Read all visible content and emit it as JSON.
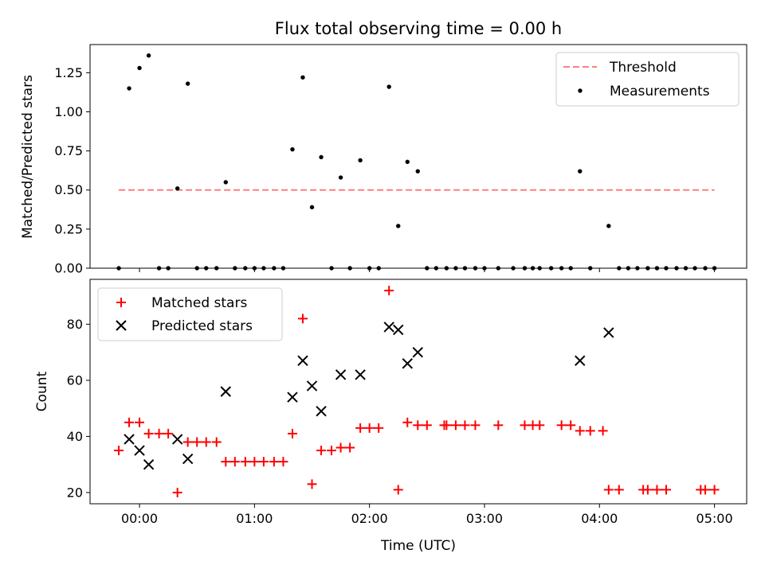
{
  "chart_data": [
    {
      "type": "scatter",
      "title": "Flux total observing time = 0.00 h",
      "xlabel": "",
      "ylabel": "Matched/Predicted stars",
      "xlim_hours": [
        -0.43,
        5.28
      ],
      "ylim": [
        0,
        1.43
      ],
      "yticks": [
        0,
        0.25,
        0.5,
        0.75,
        1.0,
        1.25
      ],
      "ytick_labels": [
        "0.00",
        "0.25",
        "0.50",
        "0.75",
        "1.00",
        "1.25"
      ],
      "legend_position": "upper-right",
      "threshold": {
        "name": "Threshold",
        "value": 0.5,
        "x_range_hours": [
          -0.18,
          5.0
        ],
        "color": "#ff7f7f"
      },
      "series": [
        {
          "name": "Measurements",
          "color": "#000000",
          "marker": "dot",
          "x_hours": [
            -0.18,
            -0.09,
            0.0,
            0.08,
            0.17,
            0.25,
            0.33,
            0.42,
            0.5,
            0.58,
            0.67,
            0.75,
            0.83,
            0.92,
            1.0,
            1.08,
            1.17,
            1.25,
            1.33,
            1.42,
            1.5,
            1.58,
            1.67,
            1.75,
            1.83,
            1.92,
            2.0,
            2.08,
            2.17,
            2.25,
            2.33,
            2.42,
            2.5,
            2.58,
            2.67,
            2.75,
            2.83,
            2.92,
            3.0,
            3.12,
            3.25,
            3.35,
            3.42,
            3.48,
            3.58,
            3.67,
            3.75,
            3.83,
            3.92,
            4.08,
            4.17,
            4.25,
            4.33,
            4.42,
            4.5,
            4.58,
            4.67,
            4.75,
            4.83,
            4.92,
            5.0
          ],
          "y": [
            0.0,
            1.15,
            1.28,
            1.36,
            0.0,
            0.0,
            0.51,
            1.18,
            0.0,
            0.0,
            0.0,
            0.55,
            0.0,
            0.0,
            0.0,
            0.0,
            0.0,
            0.0,
            0.76,
            1.22,
            0.39,
            0.71,
            0.0,
            0.58,
            0.0,
            0.69,
            0.0,
            0.0,
            1.16,
            0.27,
            0.68,
            0.62,
            0.0,
            0.0,
            0.0,
            0.0,
            0.0,
            0.0,
            0.0,
            0.0,
            0.0,
            0.0,
            0.0,
            0.0,
            0.0,
            0.0,
            0.0,
            0.62,
            0.0,
            0.27,
            0.0,
            0.0,
            0.0,
            0.0,
            0.0,
            0.0,
            0.0,
            0.0,
            0.0,
            0.0,
            0.0
          ]
        }
      ]
    },
    {
      "type": "scatter",
      "title": "",
      "xlabel": "Time (UTC)",
      "ylabel": "Count",
      "xlim_hours": [
        -0.43,
        5.28
      ],
      "ylim": [
        16,
        96
      ],
      "yticks": [
        20,
        40,
        60,
        80
      ],
      "ytick_labels": [
        "20",
        "40",
        "60",
        "80"
      ],
      "xticks_hours": [
        0,
        1,
        2,
        3,
        4,
        5
      ],
      "xtick_labels": [
        "00:00",
        "01:00",
        "02:00",
        "03:00",
        "04:00",
        "05:00"
      ],
      "legend_position": "upper-left",
      "series": [
        {
          "name": "Matched stars",
          "color": "#ff0000",
          "marker": "plus",
          "x_hours": [
            -0.18,
            -0.09,
            0.0,
            0.08,
            0.17,
            0.25,
            0.33,
            0.42,
            0.5,
            0.58,
            0.67,
            0.75,
            0.83,
            0.92,
            1.0,
            1.08,
            1.17,
            1.25,
            1.33,
            1.42,
            1.5,
            1.58,
            1.67,
            1.75,
            1.83,
            1.92,
            2.0,
            2.08,
            2.17,
            2.25,
            2.33,
            2.42,
            2.5,
            2.65,
            2.67,
            2.75,
            2.83,
            2.92,
            3.12,
            3.35,
            3.42,
            3.48,
            3.67,
            3.75,
            3.83,
            3.92,
            4.03,
            4.08,
            4.17,
            4.38,
            4.42,
            4.5,
            4.58,
            4.88,
            4.92,
            5.0
          ],
          "y": [
            35,
            45,
            45,
            41,
            41,
            41,
            20,
            38,
            38,
            38,
            38,
            31,
            31,
            31,
            31,
            31,
            31,
            31,
            41,
            82,
            23,
            35,
            35,
            36,
            36,
            43,
            43,
            43,
            92,
            21,
            45,
            44,
            44,
            44,
            44,
            44,
            44,
            44,
            44,
            44,
            44,
            44,
            44,
            44,
            42,
            42,
            42,
            21,
            21,
            21,
            21,
            21,
            21,
            21,
            21,
            21
          ]
        },
        {
          "name": "Predicted stars",
          "color": "#000000",
          "marker": "x",
          "x_hours": [
            -0.09,
            0.0,
            0.08,
            0.33,
            0.42,
            0.75,
            1.33,
            1.42,
            1.5,
            1.58,
            1.75,
            1.92,
            2.17,
            2.25,
            2.33,
            2.42,
            3.83,
            4.08
          ],
          "y": [
            39,
            35,
            30,
            39,
            32,
            56,
            54,
            67,
            58,
            49,
            62,
            62,
            79,
            78,
            66,
            70,
            67,
            77
          ]
        }
      ]
    }
  ]
}
